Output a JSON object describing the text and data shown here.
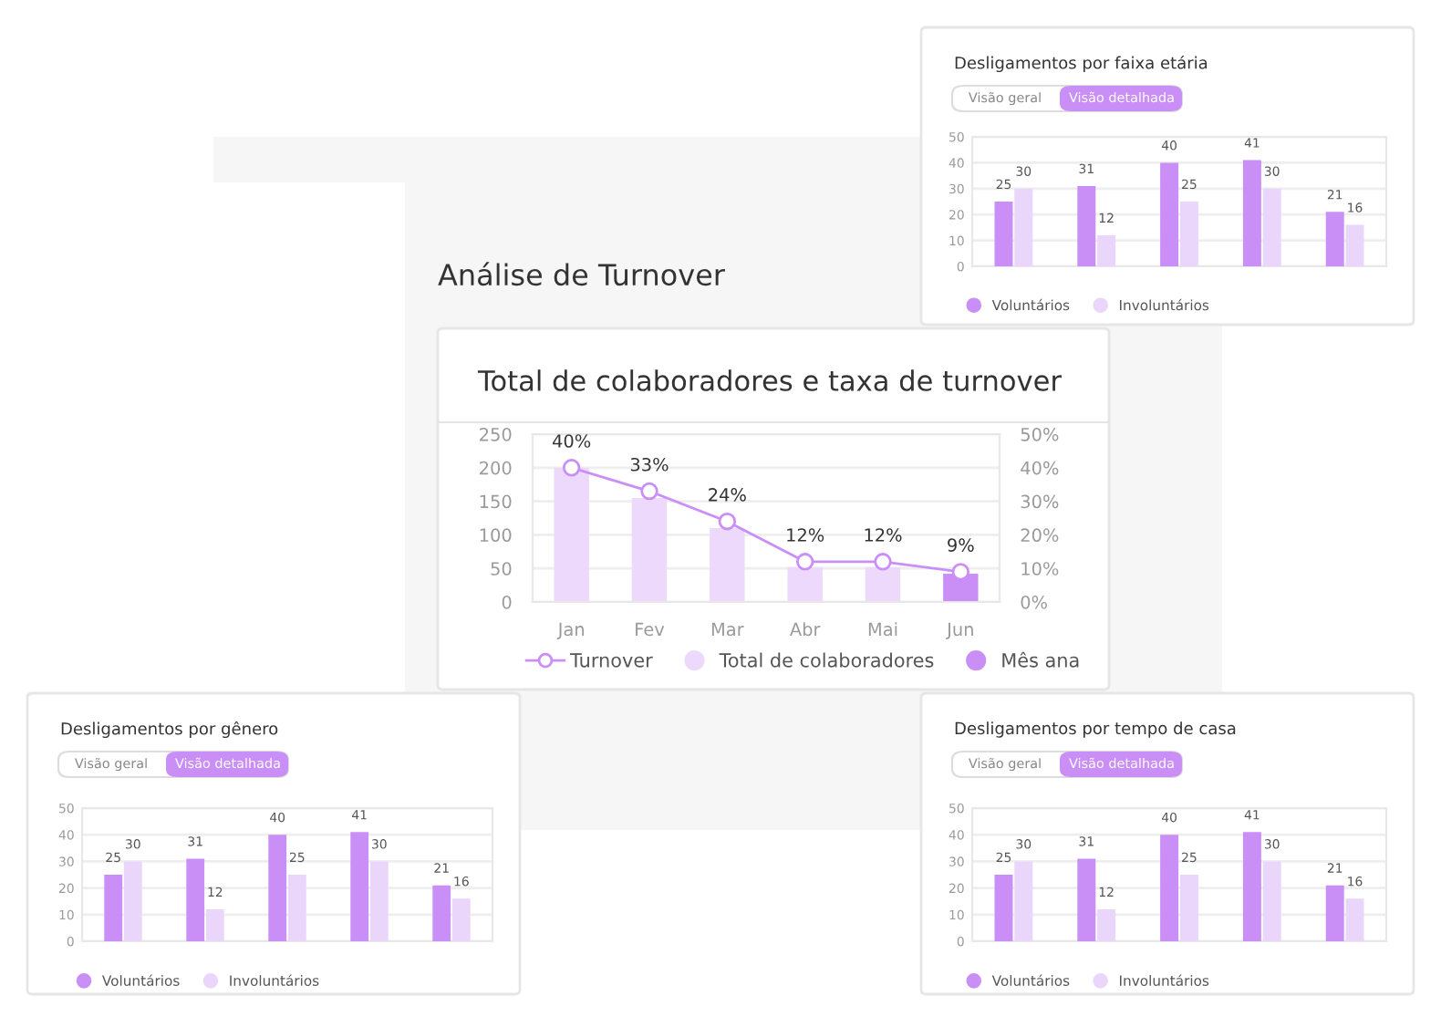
{
  "chart_data": [
    {
      "type": "bar",
      "title": "Desligamentos por faixa etária",
      "annotations": [
        "Visão geral",
        "Visão detalhada"
      ],
      "categories": [
        null,
        null,
        null,
        null,
        null
      ],
      "series": [
        {
          "name": "Voluntários",
          "color": "#c98ff7",
          "values": [
            25,
            31,
            40,
            41,
            21
          ]
        },
        {
          "name": "Involuntários",
          "color": "#ead5fb",
          "values": [
            30,
            12,
            25,
            30,
            16
          ]
        }
      ],
      "ylim": [
        0,
        50
      ],
      "yticks": [
        0,
        10,
        20,
        30,
        40,
        50
      ],
      "grid": "y",
      "legend": "bottom",
      "data_labels": true
    },
    {
      "type": "bar",
      "title": "Total de colaboradores e taxa de turnover",
      "annotations": [
        "Análise de Turnover"
      ],
      "categories": [
        "Jan",
        "Fev",
        "Mar",
        "Abr",
        "Mai",
        "Jun"
      ],
      "series": [
        {
          "name": "Turnover",
          "type": "line",
          "axis": "y2",
          "color": "#c98ff7",
          "marker": "circle",
          "values": [
            40,
            33,
            24,
            12,
            12,
            9
          ],
          "value_labels": [
            "40%",
            "33%",
            "24%",
            "12%",
            "12%",
            "9%"
          ]
        },
        {
          "name": "Total de colaboradores",
          "color": "#ecd9fb",
          "values": [
            200,
            155,
            110,
            52,
            52,
            null
          ]
        },
        {
          "name": "Mês ana",
          "color": "#c98ff7",
          "values": [
            null,
            null,
            null,
            null,
            null,
            42
          ]
        }
      ],
      "ylim": [
        0,
        250
      ],
      "yticks": [
        0,
        50,
        100,
        150,
        200,
        250
      ],
      "y2lim": [
        0,
        50
      ],
      "y2ticks": [
        {
          "value": 0,
          "label": "0%"
        },
        {
          "value": 10,
          "label": "10%"
        },
        {
          "value": 20,
          "label": "20%"
        },
        {
          "value": 30,
          "label": "30%"
        },
        {
          "value": 40,
          "label": "40%"
        },
        {
          "value": 50,
          "label": "50%"
        }
      ],
      "grid": "y",
      "legend": "bottom"
    },
    {
      "type": "bar",
      "title": "Desligamentos por gênero",
      "annotations": [
        "Visão geral",
        "Visão detalhada"
      ],
      "categories": [
        null,
        null,
        null,
        null,
        null
      ],
      "series": [
        {
          "name": "Voluntários",
          "color": "#c98ff7",
          "values": [
            25,
            31,
            40,
            41,
            21
          ]
        },
        {
          "name": "Involuntários",
          "color": "#ead5fb",
          "values": [
            30,
            12,
            25,
            30,
            16
          ]
        }
      ],
      "ylim": [
        0,
        50
      ],
      "yticks": [
        0,
        10,
        20,
        30,
        40,
        50
      ],
      "grid": "y",
      "legend": "bottom",
      "data_labels": true
    },
    {
      "type": "bar",
      "title": "Desligamentos por tempo de casa",
      "annotations": [
        "Visão geral",
        "Visão detalhada"
      ],
      "categories": [
        null,
        null,
        null,
        null,
        null
      ],
      "series": [
        {
          "name": "Voluntários",
          "color": "#c98ff7",
          "values": [
            25,
            31,
            40,
            41,
            21
          ]
        },
        {
          "name": "Involuntários",
          "color": "#ead5fb",
          "values": [
            30,
            12,
            25,
            30,
            16
          ]
        }
      ],
      "ylim": [
        0,
        50
      ],
      "yticks": [
        0,
        10,
        20,
        30,
        40,
        50
      ],
      "grid": "y",
      "legend": "bottom",
      "data_labels": true
    }
  ]
}
